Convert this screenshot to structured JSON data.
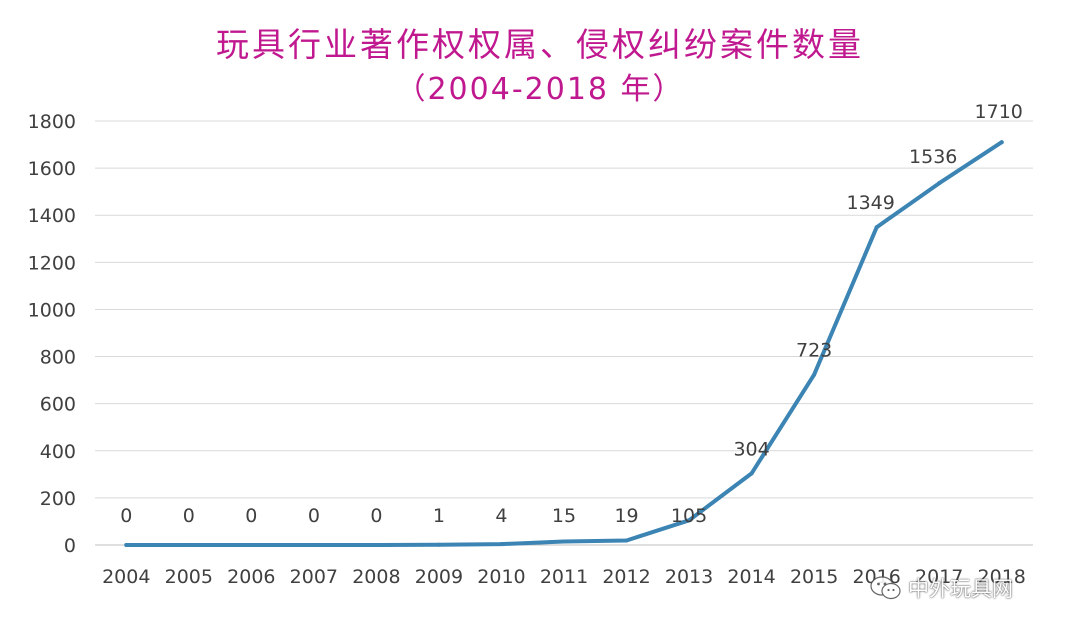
{
  "chart_data": {
    "type": "line",
    "title": "玩具行业著作权权属、侵权纠纷案件数量",
    "subtitle": "（2004-2018 年）",
    "categories": [
      "2004",
      "2005",
      "2006",
      "2007",
      "2008",
      "2009",
      "2010",
      "2011",
      "2012",
      "2013",
      "2014",
      "2015",
      "2016",
      "2017",
      "2018"
    ],
    "series": [
      {
        "values": [
          0,
          0,
          0,
          0,
          0,
          1,
          4,
          15,
          19,
          105,
          304,
          723,
          1349,
          1536,
          1710
        ]
      }
    ],
    "data_labels": [
      "0",
      "0",
      "0",
      "0",
      "0",
      "1",
      "4",
      "15",
      "19",
      "105",
      "304",
      "723",
      "1349",
      "1536",
      "1710"
    ],
    "ylim": [
      0,
      1800
    ],
    "yticks": [
      0,
      200,
      400,
      600,
      800,
      1000,
      1200,
      1400,
      1600,
      1800
    ],
    "xlabel": "",
    "ylabel": "",
    "grid": true,
    "line_color": "#3b84b3",
    "title_color": "#c0188f"
  },
  "watermark": {
    "icon": "wechat-icon",
    "text": "中外玩具网"
  }
}
